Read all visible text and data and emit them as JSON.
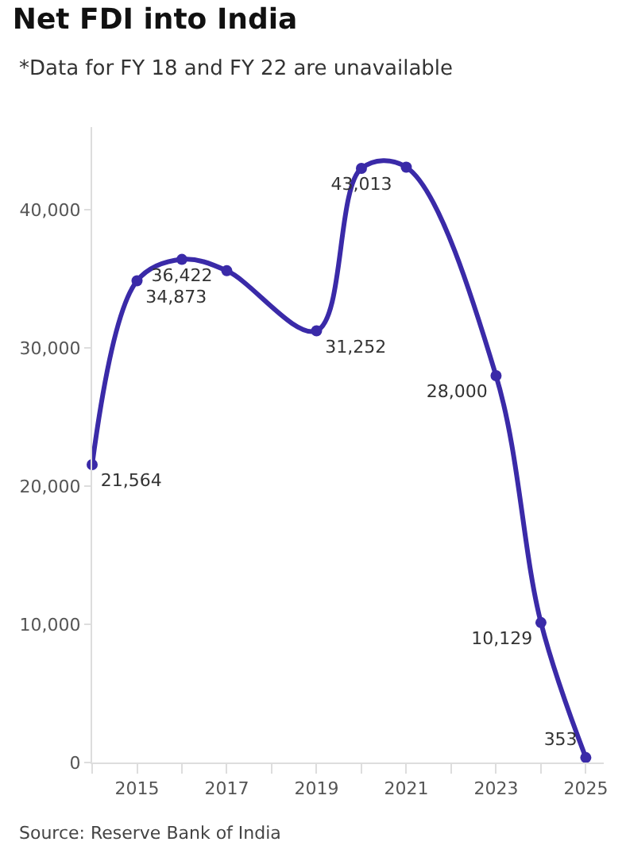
{
  "chart_data": {
    "type": "line",
    "title": "Net FDI into India",
    "subtitle": "*Data for FY 18 and FY 22 are unavailable",
    "x": [
      2014,
      2015,
      2016,
      2017,
      2019,
      2020,
      2021,
      2023,
      2024,
      2025
    ],
    "series": [
      {
        "color": "#3a2aa8",
        "values": [
          21564,
          34873,
          36422,
          35600,
          31252,
          43013,
          43100,
          28000,
          10129,
          353
        ],
        "value_labels": [
          "21,564",
          "34,873",
          "36,422",
          null,
          "31,252",
          "43,013",
          null,
          "28,000",
          "10,129",
          "353"
        ]
      }
    ],
    "xlim": [
      2014,
      2025.4
    ],
    "xticks": [
      {
        "value": 2014,
        "label": null
      },
      2015,
      {
        "value": 2016,
        "label": null
      },
      2017,
      {
        "value": 2018,
        "label": null
      },
      2019,
      {
        "value": 2020,
        "label": null
      },
      2021,
      {
        "value": 2022,
        "label": null
      },
      2023,
      {
        "value": 2024,
        "label": null
      },
      2025
    ],
    "ylim": [
      0,
      46000
    ],
    "yticks": [
      0,
      {
        "value": 10000,
        "label": "10,000"
      },
      {
        "value": 20000,
        "label": "20,000"
      },
      {
        "value": 30000,
        "label": "30,000"
      },
      {
        "value": 40000,
        "label": "40,000"
      }
    ],
    "grid": false,
    "marker": "circle",
    "line_style": "solid",
    "annotations": [
      "Source: Reserve Bank of India"
    ]
  }
}
